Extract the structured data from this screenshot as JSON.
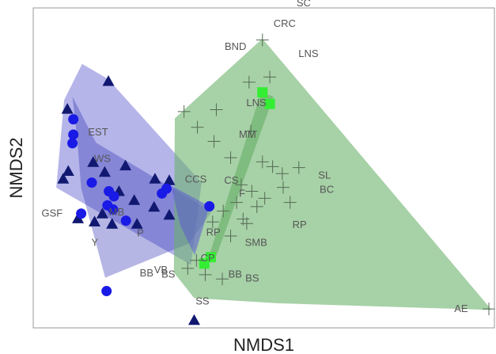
{
  "chart_data": {
    "type": "scatter",
    "title": "",
    "xlabel": "NMDS1",
    "ylabel": "NMDS2",
    "xlim": [
      0,
      100
    ],
    "ylim": [
      0,
      100
    ],
    "grid": false,
    "ticks": false,
    "colors": {
      "hull_blue": "#5b5bd0",
      "hull_blue_dark": "#2f2fb5",
      "hull_green": "#6db36d",
      "triangle": "#101870",
      "circle": "#1a1ae6",
      "square": "#33ee33",
      "cross": "#556b55",
      "label": "#555555",
      "frame": "#999999"
    },
    "hulls": [
      {
        "color": "hull_blue",
        "opacity": 0.45,
        "points": [
          [
            10.6,
            82.5
          ],
          [
            16.2,
            77.8
          ],
          [
            36.5,
            45.4
          ],
          [
            34.2,
            19.7
          ],
          [
            5.0,
            43.8
          ],
          [
            6.7,
            71.2
          ]
        ]
      },
      {
        "color": "hull_blue_dark",
        "opacity": 0.35,
        "points": [
          [
            8.5,
            72.3
          ],
          [
            13.6,
            57.9
          ],
          [
            38.7,
            36.3
          ],
          [
            33.8,
            26.4
          ],
          [
            15.6,
            15.7
          ],
          [
            10.4,
            43.7
          ],
          [
            9.4,
            61.1
          ]
        ]
      },
      {
        "color": "hull_green",
        "opacity": 0.6,
        "points": [
          [
            30.7,
            65.5
          ],
          [
            49.7,
            90.4
          ],
          [
            99.4,
            5.6
          ],
          [
            52.9,
            7.7
          ],
          [
            34.9,
            9.3
          ],
          [
            30.5,
            17.3
          ]
        ]
      },
      {
        "color": "hull_green",
        "opacity": 0.7,
        "points": [
          [
            49.4,
            73.6
          ],
          [
            52.1,
            72.3
          ],
          [
            39.3,
            20.8
          ],
          [
            37.7,
            20.5
          ]
        ]
      },
      {
        "color": "hull_blue",
        "opacity": 0.55,
        "points": [
          [
            29.9,
            44.5
          ],
          [
            38.2,
            38.0
          ],
          [
            35.0,
            22.7
          ],
          [
            31.9,
            32.0
          ]
        ]
      }
    ],
    "series": [
      {
        "marker": "triangle",
        "color": "triangle",
        "points": [
          [
            16.3,
            77.1
          ],
          [
            7.4,
            68.4
          ],
          [
            7.6,
            49.0
          ],
          [
            6.5,
            46.6
          ],
          [
            13.0,
            51.8
          ],
          [
            15.5,
            48.7
          ],
          [
            20.0,
            50.7
          ],
          [
            26.4,
            46.6
          ],
          [
            29.5,
            46.1
          ],
          [
            18.6,
            42.7
          ],
          [
            21.9,
            39.9
          ],
          [
            26.2,
            37.8
          ],
          [
            15.0,
            35.7
          ],
          [
            9.7,
            34.2
          ],
          [
            13.3,
            33.2
          ],
          [
            17.1,
            32.5
          ],
          [
            22.5,
            32.5
          ],
          [
            29.5,
            35.3
          ],
          [
            34.9,
            2.4
          ]
        ]
      },
      {
        "marker": "circle",
        "color": "circle",
        "points": [
          [
            8.7,
            65.2
          ],
          [
            8.7,
            60.4
          ],
          [
            8.5,
            57.7
          ],
          [
            12.7,
            45.4
          ],
          [
            16.4,
            42.7
          ],
          [
            17.5,
            41.1
          ],
          [
            16.1,
            38.3
          ],
          [
            17.3,
            37.0
          ],
          [
            10.4,
            35.7
          ],
          [
            20.1,
            33.5
          ],
          [
            27.9,
            42.0
          ],
          [
            28.9,
            43.5
          ],
          [
            38.2,
            38.0
          ],
          [
            15.9,
            11.5
          ]
        ]
      },
      {
        "marker": "square",
        "color": "square",
        "points": [
          [
            49.7,
            73.6
          ],
          [
            51.3,
            70.0
          ],
          [
            38.5,
            22.1
          ],
          [
            37.1,
            20.1
          ]
        ]
      },
      {
        "marker": "cross",
        "color": "cross",
        "points": [
          [
            49.7,
            90.0
          ],
          [
            46.8,
            76.8
          ],
          [
            51.3,
            78.4
          ],
          [
            32.7,
            67.6
          ],
          [
            39.7,
            68.2
          ],
          [
            35.6,
            62.7
          ],
          [
            39.2,
            58.3
          ],
          [
            47.2,
            61.5
          ],
          [
            42.8,
            53.2
          ],
          [
            49.7,
            51.9
          ],
          [
            51.9,
            50.4
          ],
          [
            54.0,
            48.2
          ],
          [
            57.6,
            50.1
          ],
          [
            45.1,
            44.7
          ],
          [
            47.4,
            42.7
          ],
          [
            50.2,
            40.5
          ],
          [
            44.1,
            39.2
          ],
          [
            48.5,
            37.9
          ],
          [
            55.7,
            39.2
          ],
          [
            54.2,
            43.9
          ],
          [
            41.2,
            36.5
          ],
          [
            45.5,
            34.0
          ],
          [
            38.9,
            33.1
          ],
          [
            46.3,
            32.6
          ],
          [
            42.8,
            28.7
          ],
          [
            35.4,
            21.1
          ],
          [
            37.3,
            16.6
          ],
          [
            41.0,
            15.3
          ],
          [
            33.5,
            18.6
          ],
          [
            98.8,
            5.9
          ]
        ]
      }
    ],
    "labels": [
      {
        "text": "SC",
        "x": 57.1,
        "y": 100.5
      },
      {
        "text": "CRC",
        "x": 52.1,
        "y": 94.0
      },
      {
        "text": "BND",
        "x": 41.5,
        "y": 86.9
      },
      {
        "text": "LNS",
        "x": 57.5,
        "y": 84.7
      },
      {
        "text": "LNS",
        "x": 46.2,
        "y": 69.3
      },
      {
        "text": "EST",
        "x": 11.9,
        "y": 60.2
      },
      {
        "text": "MM",
        "x": 44.6,
        "y": 59.4
      },
      {
        "text": "WS",
        "x": 13.2,
        "y": 51.9
      },
      {
        "text": "CCS",
        "x": 32.9,
        "y": 45.4
      },
      {
        "text": "CS",
        "x": 41.4,
        "y": 45.1
      },
      {
        "text": "SL",
        "x": 61.8,
        "y": 46.6
      },
      {
        "text": "BC",
        "x": 62.1,
        "y": 42.2
      },
      {
        "text": "F",
        "x": 44.6,
        "y": 41.0
      },
      {
        "text": "GSF",
        "x": 1.8,
        "y": 34.8
      },
      {
        "text": "MB",
        "x": 16.4,
        "y": 35.2
      },
      {
        "text": "RP",
        "x": 56.2,
        "y": 31.2
      },
      {
        "text": "P",
        "x": 22.5,
        "y": 28.6
      },
      {
        "text": "RP",
        "x": 37.5,
        "y": 28.8
      },
      {
        "text": "SMB",
        "x": 45.9,
        "y": 25.6
      },
      {
        "text": "Y",
        "x": 12.6,
        "y": 25.6
      },
      {
        "text": "CP",
        "x": 36.3,
        "y": 20.8
      },
      {
        "text": "BB",
        "x": 23.1,
        "y": 16.1
      },
      {
        "text": "VB",
        "x": 26.2,
        "y": 17.1
      },
      {
        "text": "BS",
        "x": 27.8,
        "y": 15.7
      },
      {
        "text": "BB",
        "x": 42.3,
        "y": 15.7
      },
      {
        "text": "BS",
        "x": 46.0,
        "y": 14.5
      },
      {
        "text": "SS",
        "x": 35.2,
        "y": 7.3
      },
      {
        "text": "AE",
        "x": 91.3,
        "y": 4.9
      }
    ]
  }
}
